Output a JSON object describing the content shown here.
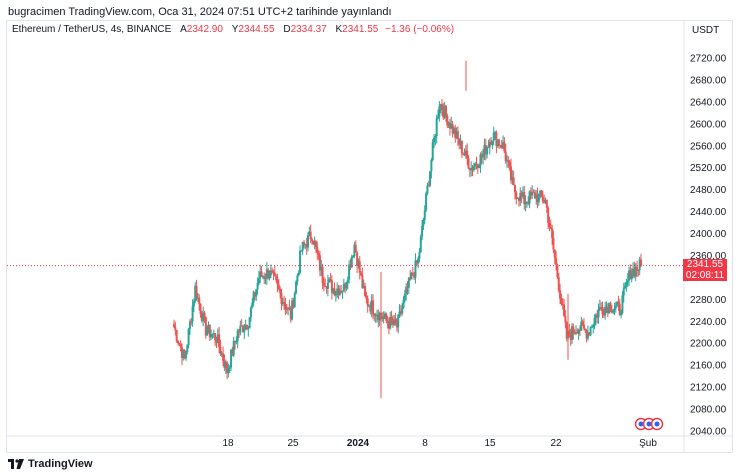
{
  "header": {
    "publisher_line": "bugracimen TradingView.com, Oca 31, 2024 07:51 UTC+2 tarihinde yayınlandı"
  },
  "legend": {
    "symbol": "Ethereum / TetherUS, 4s, BINANCE",
    "open_label": "A",
    "open_value": "2342.90",
    "high_label": "Y",
    "high_value": "2344.55",
    "low_label": "D",
    "low_value": "2334.37",
    "close_label": "K",
    "close_value": "2341.55",
    "change": "−1.36 (−0.06%)"
  },
  "price_axis_currency": "USDT",
  "current_price": {
    "price": "2341.55",
    "countdown": "02:08:11"
  },
  "footer": {
    "brand": "TradingView"
  },
  "colors": {
    "up": "#26a69a",
    "down": "#ef5350",
    "price_line": "#f23645",
    "grid_text": "#131722"
  },
  "chart_data": {
    "type": "candlestick",
    "ylim": [
      2040,
      2730
    ],
    "y_ticks": [
      "2720.00",
      "2680.00",
      "2640.00",
      "2600.00",
      "2560.00",
      "2520.00",
      "2480.00",
      "2440.00",
      "2400.00",
      "2360.00",
      "2320.00",
      "2280.00",
      "2240.00",
      "2200.00",
      "2160.00",
      "2120.00",
      "2080.00",
      "2040.00"
    ],
    "x_ticks": [
      {
        "label": "18",
        "bold": false
      },
      {
        "label": "25",
        "bold": false
      },
      {
        "label": "2024",
        "bold": true
      },
      {
        "label": "8",
        "bold": false
      },
      {
        "label": "15",
        "bold": false
      },
      {
        "label": "22",
        "bold": false
      },
      {
        "label": "Şub",
        "bold": false
      }
    ],
    "ohlc_anchor": [
      [
        "Dec 12",
        2230
      ],
      [
        "Dec 13",
        2170
      ],
      [
        "Dec 14",
        2300
      ],
      [
        "Dec 15",
        2225
      ],
      [
        "Dec 17",
        2210
      ],
      [
        "Dec 18",
        2150
      ],
      [
        "Dec 19",
        2220
      ],
      [
        "Dec 20",
        2240
      ],
      [
        "Dec 21",
        2320
      ],
      [
        "Dec 22",
        2330
      ],
      [
        "Dec 24",
        2290
      ],
      [
        "Dec 26",
        2250
      ],
      [
        "Dec 27",
        2370
      ],
      [
        "Dec 28",
        2400
      ],
      [
        "Dec 29",
        2320
      ],
      [
        "Dec 31",
        2300
      ],
      [
        "Jan 1",
        2300
      ],
      [
        "Jan 2",
        2380
      ],
      [
        "Jan 3",
        2280
      ],
      [
        "Jan 4",
        2260
      ],
      [
        "Jan 5",
        2240
      ],
      [
        "Jan 7",
        2230
      ],
      [
        "Jan 8",
        2300
      ],
      [
        "Jan 9",
        2350
      ],
      [
        "Jan 10",
        2500
      ],
      [
        "Jan 11",
        2640
      ],
      [
        "Jan 12",
        2600
      ],
      [
        "Jan 13",
        2560
      ],
      [
        "Jan 14",
        2520
      ],
      [
        "Jan 15",
        2540
      ],
      [
        "Jan 16",
        2580
      ],
      [
        "Jan 17",
        2560
      ],
      [
        "Jan 18",
        2480
      ],
      [
        "Jan 19",
        2460
      ],
      [
        "Jan 20",
        2470
      ],
      [
        "Jan 21",
        2460
      ],
      [
        "Jan 22",
        2340
      ],
      [
        "Jan 23",
        2210
      ],
      [
        "Jan 24",
        2230
      ],
      [
        "Jan 25",
        2220
      ],
      [
        "Jan 26",
        2260
      ],
      [
        "Jan 27",
        2270
      ],
      [
        "Jan 29",
        2260
      ],
      [
        "Jan 30",
        2330
      ],
      [
        "Jan 31",
        2341.55
      ]
    ]
  }
}
